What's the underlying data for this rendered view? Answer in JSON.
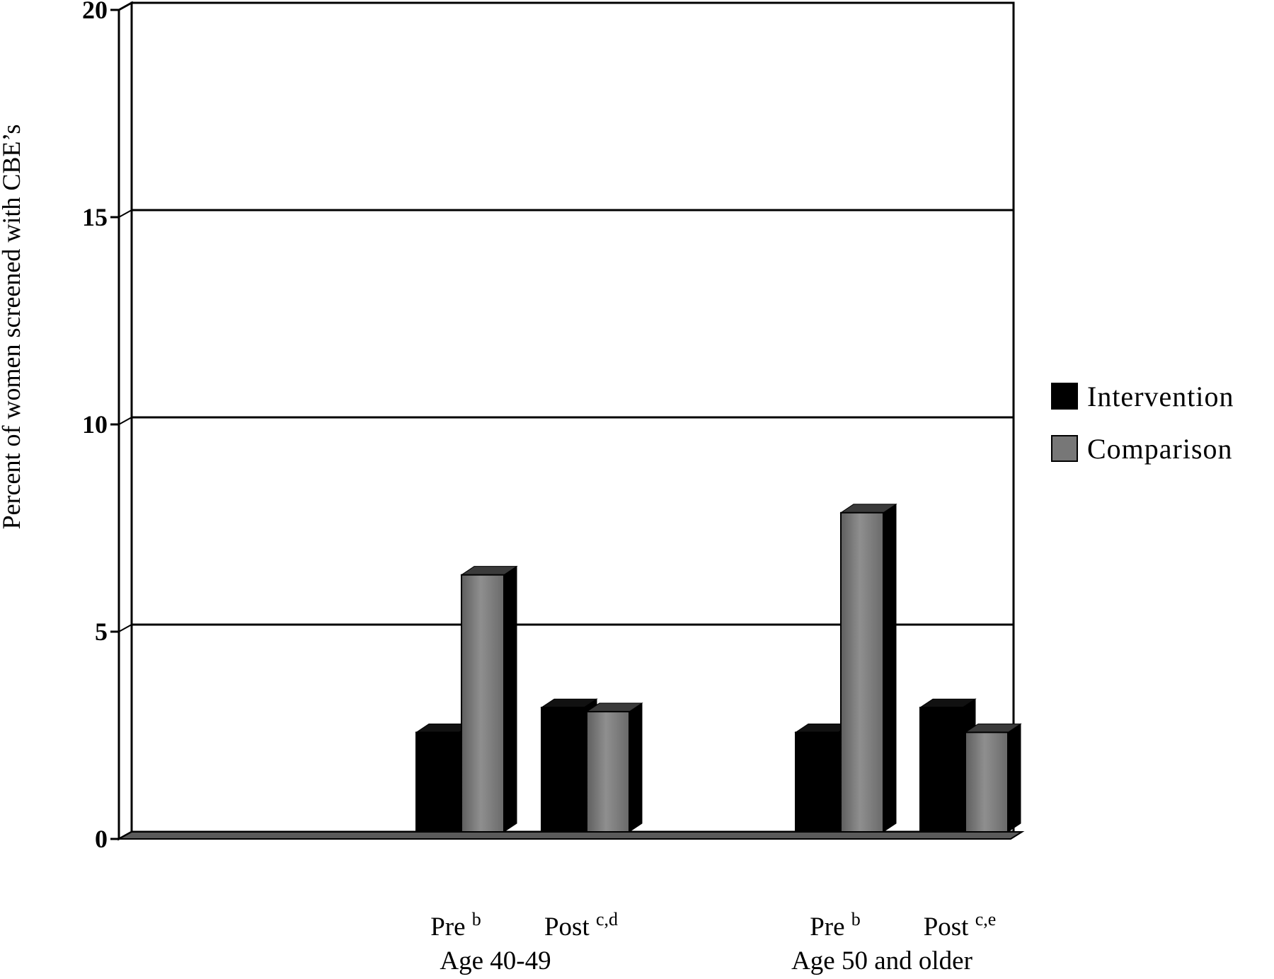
{
  "chart_data": {
    "type": "bar",
    "title": "",
    "xlabel": "",
    "ylabel": "Percent of women screened with CBE’s",
    "ylim": [
      0,
      20
    ],
    "yticks": [
      "0",
      "5",
      "10",
      "15",
      "20"
    ],
    "grid": true,
    "legend_position": "right",
    "categories": [
      {
        "label": "Pre",
        "sup": "b",
        "group": "Age 40-49"
      },
      {
        "label": "Post",
        "sup": "c,d",
        "group": "Age 40-49"
      },
      {
        "label": "Pre",
        "sup": "b",
        "group": "Age 50 and older"
      },
      {
        "label": "Post",
        "sup": "c,e",
        "group": "Age 50 and older"
      }
    ],
    "groups": [
      "Age 40-49",
      "Age 50 and older"
    ],
    "series": [
      {
        "name": "Intervention",
        "color": "#000000",
        "values": [
          2.4,
          3.0,
          2.4,
          3.0
        ]
      },
      {
        "name": "Comparison",
        "color": "#808080",
        "values": [
          6.2,
          2.9,
          7.7,
          2.4
        ]
      }
    ]
  }
}
